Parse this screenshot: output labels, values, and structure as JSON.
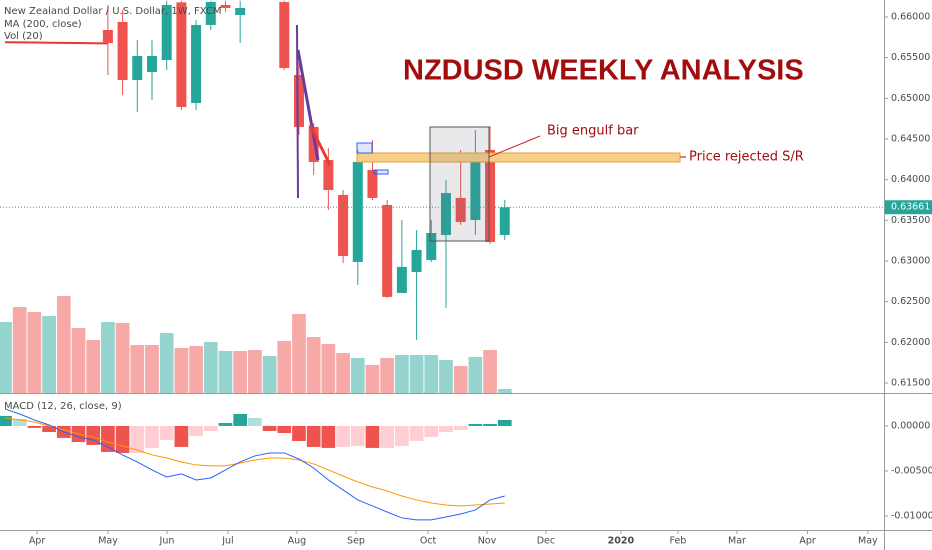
{
  "chart_data": [
    {
      "type": "candlestick",
      "title": "New Zealand Dollar / U.S. Dollar, 1W, FXCM",
      "headline": "NZDUSD WEEKLY ANALYSIS",
      "annotations": [
        "Big engulf bar",
        "Price rejected S/R"
      ],
      "up_color": "#26a69a",
      "down_color": "#ef5350",
      "x": [
        7,
        8,
        9,
        10,
        11,
        12,
        13,
        14,
        15,
        16,
        19,
        20,
        21,
        22,
        23,
        24,
        25,
        26,
        27,
        28,
        29,
        30,
        31,
        32,
        33,
        34
      ],
      "open": [
        0.6584,
        0.65939,
        0.65225,
        0.65324,
        0.65471,
        0.6618,
        0.64943,
        0.65902,
        0.66148,
        0.66025,
        0.66184,
        0.65287,
        0.64648,
        0.64242,
        0.63812,
        0.62988,
        0.64119,
        0.63689,
        0.62607,
        0.62865,
        0.63013,
        0.6332,
        0.63775,
        0.63504,
        0.64365,
        0.6332
      ],
      "high": [
        0.66148,
        0.66086,
        0.65717,
        0.65717,
        0.662,
        0.662,
        0.65963,
        0.662,
        0.662,
        0.662,
        0.662,
        0.65594,
        0.64697,
        0.64389,
        0.63873,
        0.64365,
        0.64488,
        0.6375,
        0.63504,
        0.63381,
        0.63504,
        0.63996,
        0.64365,
        0.64611,
        0.6466,
        0.6375
      ],
      "low": [
        0.65287,
        0.65041,
        0.64832,
        0.6498,
        0.65348,
        0.64857,
        0.64857,
        0.6584,
        0.66061,
        0.6568,
        0.65348,
        0.64549,
        0.64058,
        0.63627,
        0.62976,
        0.62705,
        0.6375,
        0.62545,
        0.62607,
        0.62029,
        0.62988,
        0.62422,
        0.63443,
        0.6332,
        0.63209,
        0.63258
      ],
      "close": [
        0.6568,
        0.65225,
        0.65521,
        0.65521,
        0.66148,
        0.64894,
        0.65902,
        0.66184,
        0.66111,
        0.66111,
        0.65373,
        0.64648,
        0.64217,
        0.63873,
        0.63062,
        0.64217,
        0.63775,
        0.62558,
        0.62927,
        0.63136,
        0.63344,
        0.63836,
        0.6348,
        0.64242,
        0.63234,
        0.63661
      ],
      "last_price_line": true,
      "overlays": [
        {
          "name": "MA (200, close)",
          "color": "#e53935",
          "x": [
            0,
            1,
            2,
            3,
            4,
            5,
            6,
            7
          ],
          "values": [
            0.6569,
            0.65688,
            0.65686,
            0.65684,
            0.65682,
            0.6568,
            0.65678,
            0.65676
          ]
        }
      ],
      "volume": {
        "name": "Vol (20)",
        "x": [
          0,
          1,
          2,
          3,
          4,
          5,
          6,
          7,
          8,
          9,
          10,
          11,
          12,
          13,
          14,
          15,
          16,
          17,
          18,
          19,
          20,
          21,
          22,
          23,
          24,
          25,
          26,
          27,
          28,
          29,
          30,
          31,
          32,
          33,
          34
        ],
        "values": [
          71,
          86,
          81,
          77,
          97,
          65,
          53,
          71,
          70,
          48,
          48,
          60,
          45,
          47,
          51,
          42,
          42,
          43,
          37,
          52,
          79,
          56,
          49,
          40,
          35,
          28,
          35,
          38,
          38,
          38,
          33,
          27,
          36,
          43,
          4
        ],
        "colors": [
          "#94d3ce",
          "#f6a9a7",
          "#f6a9a7",
          "#94d3ce",
          "#f6a9a7",
          "#f6a9a7",
          "#f6a9a7",
          "#94d3ce",
          "#f6a9a7",
          "#f6a9a7",
          "#f6a9a7",
          "#94d3ce",
          "#f6a9a7",
          "#f6a9a7",
          "#94d3ce",
          "#94d3ce",
          "#f6a9a7",
          "#f6a9a7",
          "#94d3ce",
          "#f6a9a7",
          "#f6a9a7",
          "#f6a9a7",
          "#f6a9a7",
          "#f6a9a7",
          "#94d3ce",
          "#f6a9a7",
          "#f6a9a7",
          "#94d3ce",
          "#94d3ce",
          "#94d3ce",
          "#94d3ce",
          "#f6a9a7",
          "#94d3ce",
          "#f6a9a7",
          "#94d3ce"
        ]
      },
      "xlim": [
        -0.34,
        59.8
      ],
      "xticks": [
        {
          "value": 2.18,
          "label": "Apr"
        },
        {
          "value": 7.01,
          "label": "May"
        },
        {
          "value": 11.02,
          "label": "Jun"
        },
        {
          "value": 15.17,
          "label": "Jul"
        },
        {
          "value": 19.86,
          "label": "Aug"
        },
        {
          "value": 23.88,
          "label": "Sep"
        },
        {
          "value": 28.78,
          "label": "Oct"
        },
        {
          "value": 32.79,
          "label": "Nov"
        },
        {
          "value": 36.8,
          "label": "Dec"
        },
        {
          "value": 41.9,
          "label": "2020"
        },
        {
          "value": 45.78,
          "label": "Feb"
        },
        {
          "value": 49.8,
          "label": "Mar"
        },
        {
          "value": 54.6,
          "label": "Apr"
        },
        {
          "value": 58.7,
          "label": "May"
        }
      ],
      "ylim": [
        0.61377,
        0.66209
      ],
      "yticks": [
        {
          "value": 0.66,
          "label": "0.66000"
        },
        {
          "value": 0.655,
          "label": "0.65500"
        },
        {
          "value": 0.65,
          "label": "0.65000"
        },
        {
          "value": 0.645,
          "label": "0.64500"
        },
        {
          "value": 0.64,
          "label": "0.64000"
        },
        {
          "value": 0.635,
          "label": "0.63500"
        },
        {
          "value": 0.63,
          "label": "0.63000"
        },
        {
          "value": 0.625,
          "label": "0.62500"
        },
        {
          "value": 0.62,
          "label": "0.62000"
        },
        {
          "value": 0.615,
          "label": "0.61500"
        }
      ]
    },
    {
      "type": "macd",
      "title": "MACD (12, 26, close, 9)",
      "x": [
        0,
        1,
        2,
        3,
        4,
        5,
        6,
        7,
        8,
        9,
        10,
        11,
        12,
        13,
        14,
        15,
        16,
        17,
        18,
        19,
        20,
        21,
        22,
        23,
        24,
        25,
        26,
        27,
        28,
        29,
        30,
        31,
        32,
        33,
        34
      ],
      "histogram": {
        "colors": [
          "#26a69a",
          "#b2dfdb",
          "#ef5350",
          "#ffcdd2"
        ],
        "values": [
          0.00111,
          0.00078,
          -0.00022,
          -0.00067,
          -0.00133,
          -0.00178,
          -0.00211,
          -0.00289,
          -0.003,
          -0.003,
          -0.00244,
          -0.00156,
          -0.00233,
          -0.00111,
          -0.00056,
          0.00033,
          0.00133,
          0.00089,
          -0.00056,
          -0.00078,
          -0.00167,
          -0.00233,
          -0.00244,
          -0.00233,
          -0.00222,
          -0.00244,
          -0.00244,
          -0.00222,
          -0.00167,
          -0.00122,
          -0.00067,
          -0.00044,
          0.00022,
          0.00022,
          0.00067
        ]
      },
      "macd": {
        "color": "#2962ff",
        "values": [
          0.00189,
          0.00133,
          0.00067,
          0.00011,
          -0.00067,
          -0.00122,
          -0.00156,
          -0.00233,
          -0.00322,
          -0.004,
          -0.00489,
          -0.00567,
          -0.00533,
          -0.006,
          -0.00578,
          -0.00489,
          -0.004,
          -0.00333,
          -0.003,
          -0.003,
          -0.00367,
          -0.00467,
          -0.006,
          -0.00711,
          -0.00822,
          -0.00889,
          -0.00956,
          -0.01022,
          -0.01044,
          -0.01044,
          -0.01011,
          -0.00978,
          -0.00933,
          -0.00822,
          -0.00778
        ]
      },
      "signal": {
        "color": "#ff9800",
        "values": [
          0.00089,
          0.00067,
          0.00044,
          0,
          -0.00044,
          -0.00089,
          -0.00122,
          -0.00178,
          -0.00222,
          -0.00267,
          -0.00322,
          -0.00356,
          -0.004,
          -0.00433,
          -0.00444,
          -0.00444,
          -0.00411,
          -0.00378,
          -0.00356,
          -0.00356,
          -0.00378,
          -0.00422,
          -0.00489,
          -0.00556,
          -0.00622,
          -0.00678,
          -0.00722,
          -0.00778,
          -0.00822,
          -0.00856,
          -0.00878,
          -0.00889,
          -0.00878,
          -0.00867,
          -0.00856
        ]
      },
      "ylim": [
        -0.01156,
        0.00344
      ],
      "yticks": [
        {
          "value": 0,
          "label": "0.00000"
        },
        {
          "value": -0.005,
          "label": "-0.00500"
        },
        {
          "value": -0.01,
          "label": "-0.01000"
        }
      ]
    }
  ]
}
